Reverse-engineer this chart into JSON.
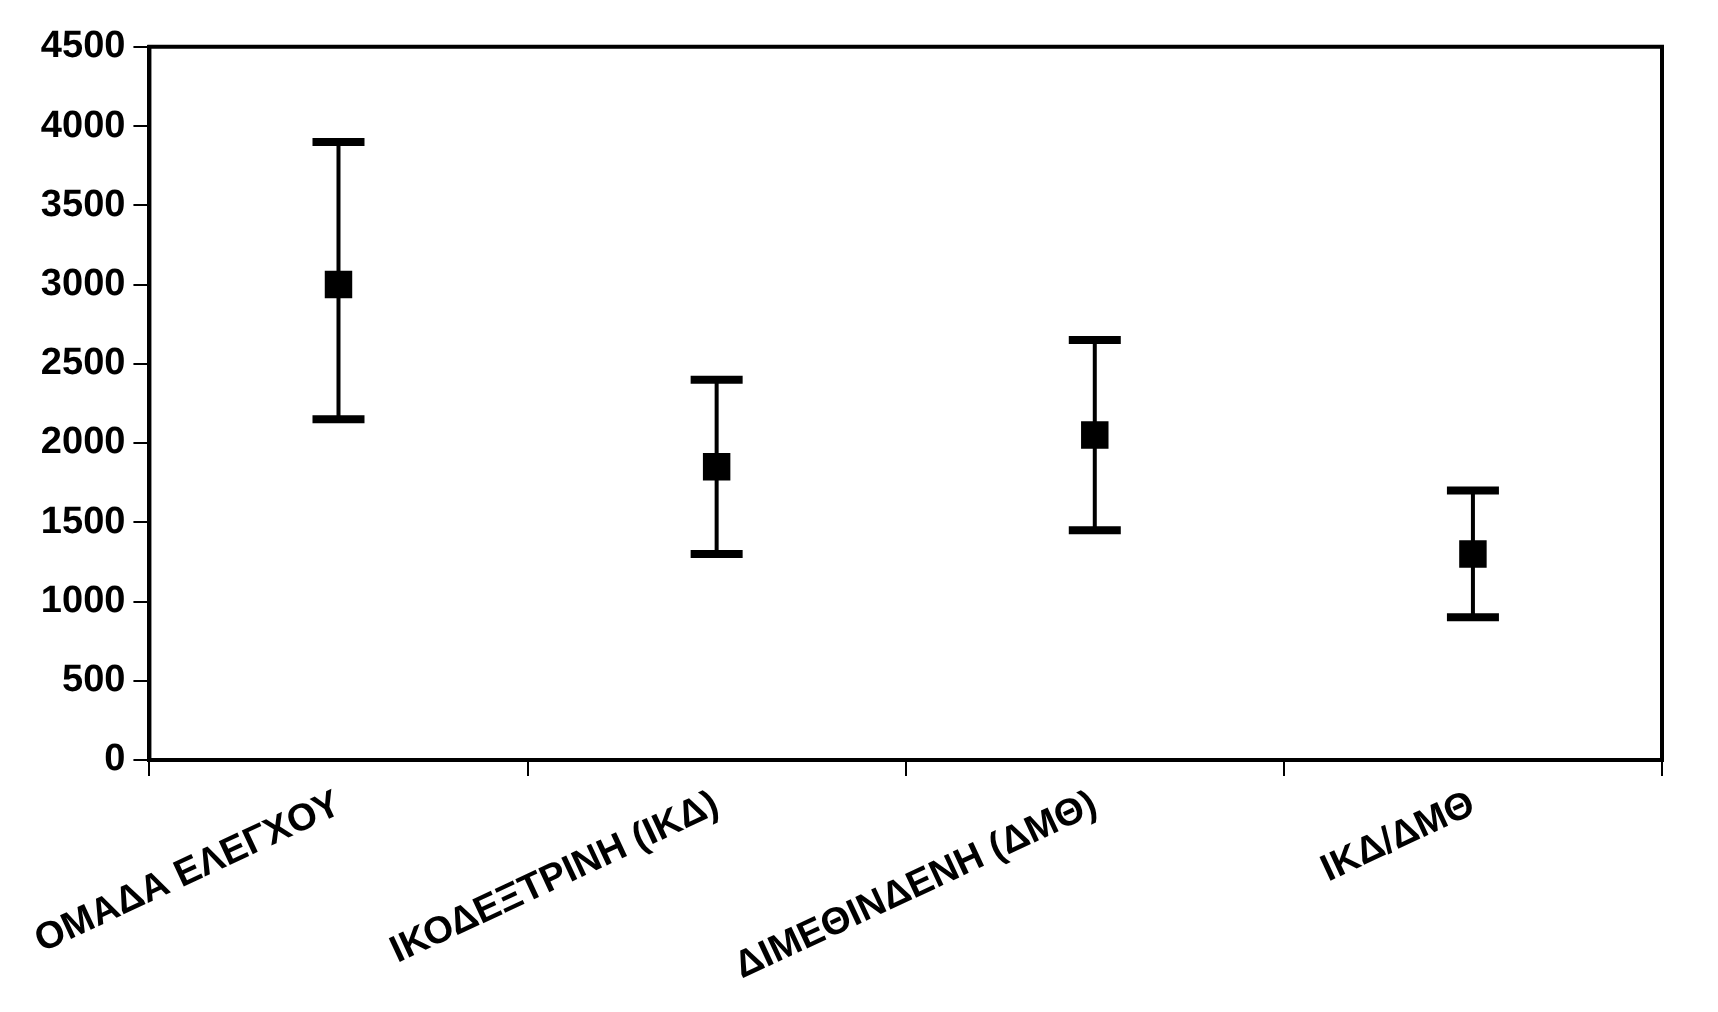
{
  "chart_data": {
    "type": "scatter",
    "categories": [
      "ΟΜΑΔΑ ΕΛΕΓΧΟΥ",
      "ΙΚΟΔΕΞΤΡΙΝΗ (ΙΚΔ)",
      "ΔΙΜΕΘΙΝΔΕΝΗ (ΔΜΘ)",
      "ΙΚΔ/ΔΜΘ"
    ],
    "series": [
      {
        "color": "#000000",
        "values": [
          3000,
          1850,
          2050,
          1300
        ],
        "errors": [
          [
            2150,
            3900
          ],
          [
            1300,
            2400
          ],
          [
            1450,
            2650
          ],
          [
            900,
            1700
          ]
        ]
      }
    ],
    "ylim": [
      0,
      4500
    ],
    "yticks": [
      0,
      500,
      1000,
      1500,
      2000,
      2500,
      3000,
      3500,
      4000,
      4500
    ],
    "marker": "square",
    "grid": false,
    "legend": false
  }
}
